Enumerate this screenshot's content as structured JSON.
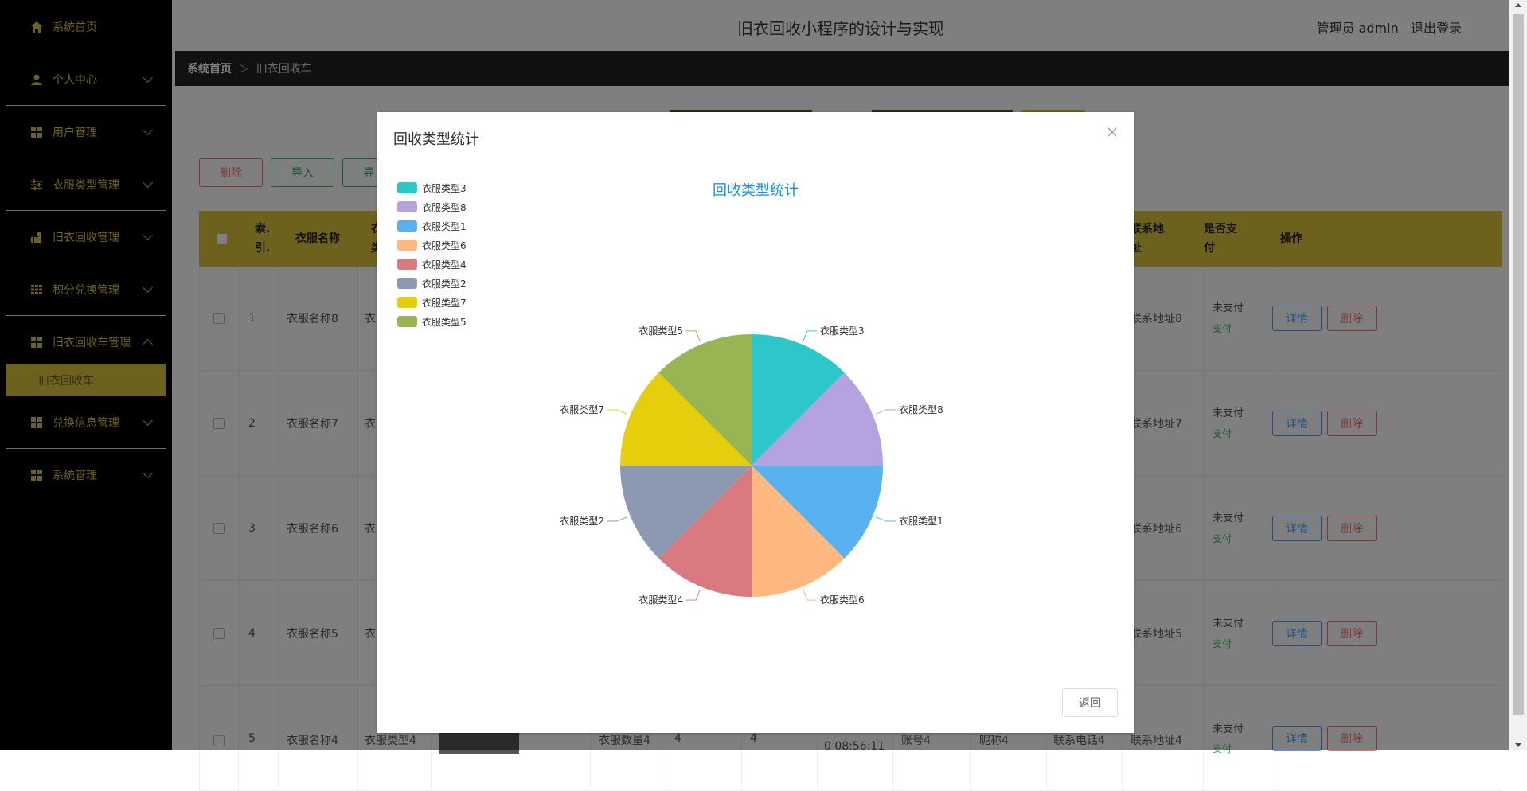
{
  "sidebar": {
    "items": [
      {
        "label": "系统首页",
        "icon": "home-icon"
      },
      {
        "label": "个人中心",
        "icon": "user-icon"
      },
      {
        "label": "用户管理",
        "icon": "grid-icon"
      },
      {
        "label": "衣服类型管理",
        "icon": "sliders-icon"
      },
      {
        "label": "旧衣回收管理",
        "icon": "hand-icon"
      },
      {
        "label": "积分兑换管理",
        "icon": "table-icon"
      },
      {
        "label": "旧衣回收车管理",
        "icon": "grid-icon"
      },
      {
        "label": "兑换信息管理",
        "icon": "grid-icon"
      },
      {
        "label": "系统管理",
        "icon": "grid-icon"
      }
    ],
    "active_sub": "旧衣回收车"
  },
  "header": {
    "title": "旧衣回收小程序的设计与实现",
    "user": "管理员 admin",
    "logout": "退出登录"
  },
  "breadcrumb": {
    "home": "系统首页",
    "sep": "▷",
    "current": "旧衣回收车"
  },
  "toolbar": {
    "delete": "删除",
    "import": "导入",
    "export": "导"
  },
  "table": {
    "headers": [
      "索.\n引.",
      "衣服名称",
      "衣\n类",
      "联系地\n址",
      "是否支\n付",
      "操作"
    ],
    "rows": [
      {
        "index": "1",
        "name": "衣服名称8",
        "type": "衣",
        "addr": "联系地址8",
        "pay": "未支付",
        "pay_link": "支付"
      },
      {
        "index": "2",
        "name": "衣服名称7",
        "type": "衣",
        "addr": "联系地址7",
        "pay": "未支付",
        "pay_link": "支付"
      },
      {
        "index": "3",
        "name": "衣服名称6",
        "type": "衣",
        "addr": "联系地址6",
        "pay": "未支付",
        "pay_link": "支付"
      },
      {
        "index": "4",
        "name": "衣服名称5",
        "type": "衣",
        "addr": "联系地址5",
        "pay": "未支付",
        "pay_link": "支付"
      },
      {
        "index": "5",
        "name": "衣服名称4",
        "type": "衣服类型4",
        "qty": "衣服数量4",
        "c1": "4",
        "c2": "4",
        "time": "0 08:56:11",
        "account": "账号4",
        "nick": "昵称4",
        "phone": "联系电话4",
        "addr": "联系地址4",
        "pay": "未支付",
        "pay_link": "支付"
      }
    ],
    "detail": "详情",
    "delete": "删除"
  },
  "dialog": {
    "title": "回收类型统计",
    "return": "返回"
  },
  "chart_data": {
    "type": "pie",
    "title": "回收类型统计",
    "legend_position": "top-left",
    "categories": [
      "衣服类型3",
      "衣服类型8",
      "衣服类型1",
      "衣服类型6",
      "衣服类型4",
      "衣服类型2",
      "衣服类型7",
      "衣服类型5"
    ],
    "values": [
      1,
      1,
      1,
      1,
      1,
      1,
      1,
      1
    ],
    "colors": [
      "#2ec7c9",
      "#b6a2de",
      "#5ab1ef",
      "#ffb980",
      "#d87a80",
      "#8d98b3",
      "#e5cf0d",
      "#97b552"
    ]
  }
}
